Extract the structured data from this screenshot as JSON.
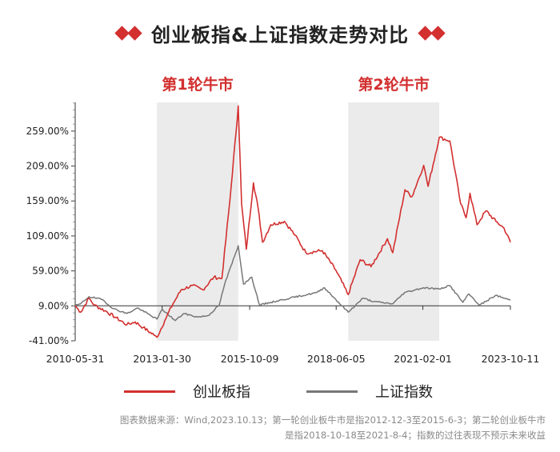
{
  "title": "创业板指&上证指数走势对比",
  "colors": {
    "accent": "#d32f2f",
    "series1": "#d32f2f",
    "series2": "#777777",
    "shade": "#ebebeb"
  },
  "chart_data": {
    "type": "line",
    "title": "创业板指&上证指数走势对比",
    "xlabel": "",
    "ylabel": "",
    "x_tick_labels": [
      "2010-05-31",
      "2013-01-30",
      "2015-10-09",
      "2018-06-05",
      "2021-02-01",
      "2023-10-11"
    ],
    "x_range": [
      "2010-05-31",
      "2023-10-11"
    ],
    "y_tick_labels": [
      "-41.00%",
      "9.00%",
      "59.00%",
      "109.00%",
      "159.00%",
      "209.00%",
      "259.00%"
    ],
    "y_ticks": [
      -41,
      9,
      59,
      109,
      159,
      209,
      259
    ],
    "ylim": [
      -41,
      300
    ],
    "grid": false,
    "legend_position": "bottom",
    "shaded_regions": [
      {
        "label": "第1轮牛市",
        "start": "2012-12-03",
        "end": "2015-06-03"
      },
      {
        "label": "第2轮牛市",
        "start": "2018-10-18",
        "end": "2021-08-04"
      }
    ],
    "series": [
      {
        "name": "创业板指",
        "color": "#d32f2f",
        "points": [
          [
            "2010-05-31",
            9
          ],
          [
            "2010-08-01",
            0
          ],
          [
            "2010-11-01",
            20
          ],
          [
            "2011-01-01",
            10
          ],
          [
            "2011-05-01",
            2
          ],
          [
            "2011-09-01",
            -8
          ],
          [
            "2012-01-01",
            -18
          ],
          [
            "2012-04-01",
            -14
          ],
          [
            "2012-07-01",
            -22
          ],
          [
            "2012-11-01",
            -33
          ],
          [
            "2012-12-03",
            -36
          ],
          [
            "2013-03-01",
            -12
          ],
          [
            "2013-06-01",
            12
          ],
          [
            "2013-09-01",
            32
          ],
          [
            "2014-01-01",
            38
          ],
          [
            "2014-05-01",
            32
          ],
          [
            "2014-09-01",
            50
          ],
          [
            "2014-12-01",
            48
          ],
          [
            "2015-03-01",
            160
          ],
          [
            "2015-06-03",
            295
          ],
          [
            "2015-07-10",
            155
          ],
          [
            "2015-09-01",
            90
          ],
          [
            "2015-11-20",
            185
          ],
          [
            "2016-01-10",
            150
          ],
          [
            "2016-03-01",
            100
          ],
          [
            "2016-06-01",
            125
          ],
          [
            "2016-11-01",
            130
          ],
          [
            "2017-03-01",
            110
          ],
          [
            "2017-07-01",
            85
          ],
          [
            "2018-01-01",
            88
          ],
          [
            "2018-06-01",
            60
          ],
          [
            "2018-10-18",
            25
          ],
          [
            "2019-03-01",
            75
          ],
          [
            "2019-07-01",
            65
          ],
          [
            "2020-01-01",
            105
          ],
          [
            "2020-03-01",
            85
          ],
          [
            "2020-07-15",
            175
          ],
          [
            "2020-10-01",
            165
          ],
          [
            "2021-02-10",
            210
          ],
          [
            "2021-04-01",
            180
          ],
          [
            "2021-08-04",
            250
          ],
          [
            "2021-12-01",
            245
          ],
          [
            "2022-04-01",
            155
          ],
          [
            "2022-06-01",
            135
          ],
          [
            "2022-07-15",
            170
          ],
          [
            "2022-10-01",
            125
          ],
          [
            "2023-01-10",
            145
          ],
          [
            "2023-05-01",
            130
          ],
          [
            "2023-08-01",
            120
          ],
          [
            "2023-10-11",
            100
          ]
        ]
      },
      {
        "name": "上证指数",
        "color": "#777777",
        "points": [
          [
            "2010-05-31",
            9
          ],
          [
            "2010-08-01",
            12
          ],
          [
            "2010-11-01",
            22
          ],
          [
            "2011-04-01",
            18
          ],
          [
            "2011-08-01",
            5
          ],
          [
            "2012-01-01",
            -2
          ],
          [
            "2012-05-01",
            6
          ],
          [
            "2012-12-03",
            -10
          ],
          [
            "2013-02-01",
            4
          ],
          [
            "2013-06-25",
            -12
          ],
          [
            "2013-10-01",
            -2
          ],
          [
            "2014-03-01",
            -7
          ],
          [
            "2014-07-01",
            -5
          ],
          [
            "2014-11-01",
            10
          ],
          [
            "2015-01-01",
            40
          ],
          [
            "2015-06-03",
            95
          ],
          [
            "2015-08-01",
            40
          ],
          [
            "2015-11-01",
            50
          ],
          [
            "2016-01-28",
            10
          ],
          [
            "2016-06-01",
            14
          ],
          [
            "2017-01-01",
            20
          ],
          [
            "2017-11-01",
            28
          ],
          [
            "2018-01-25",
            35
          ],
          [
            "2018-06-01",
            18
          ],
          [
            "2018-10-18",
            0
          ],
          [
            "2019-04-01",
            20
          ],
          [
            "2019-08-01",
            15
          ],
          [
            "2020-03-01",
            12
          ],
          [
            "2020-07-10",
            28
          ],
          [
            "2021-02-10",
            35
          ],
          [
            "2021-08-04",
            33
          ],
          [
            "2021-12-01",
            38
          ],
          [
            "2022-04-26",
            14
          ],
          [
            "2022-07-01",
            26
          ],
          [
            "2022-10-31",
            10
          ],
          [
            "2023-05-01",
            24
          ],
          [
            "2023-10-11",
            17
          ]
        ]
      }
    ],
    "annotations": [
      "第1轮牛市",
      "第2轮牛市"
    ]
  },
  "legend": {
    "items": [
      "创业板指",
      "上证指数"
    ]
  },
  "footnote": {
    "line1": "图表数据来源：Wind,2023.10.13；第一轮创业板牛市是指2012-12-3至2015-6-3；第二轮创业板牛市",
    "line2": "是指2018-10-18至2021-8-4；指数的过往表现不预示未来收益"
  }
}
